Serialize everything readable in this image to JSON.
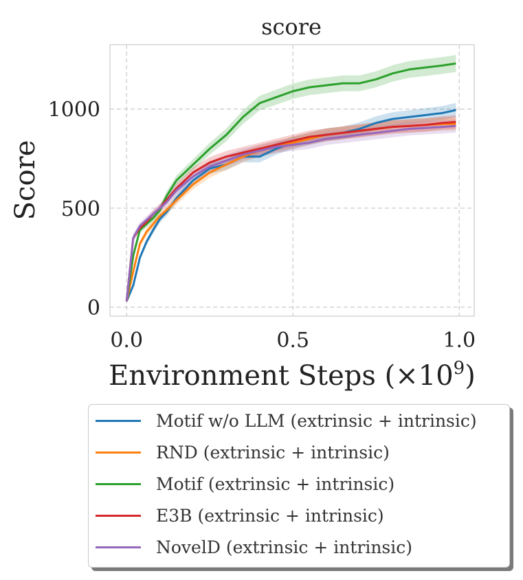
{
  "chart_data": {
    "type": "line",
    "title": "score",
    "xlabel": "Environment Steps (×10",
    "xlabel_exponent": "9",
    "xlabel_close": ")",
    "ylabel": "Score",
    "xlim": [
      -0.05,
      1.045
    ],
    "ylim": [
      -45,
      1325
    ],
    "xticks": [
      {
        "value": 0.0,
        "label": "0.0"
      },
      {
        "value": 0.5,
        "label": "0.5"
      },
      {
        "value": 1.0,
        "label": "1.0"
      }
    ],
    "yticks": [
      {
        "value": 0,
        "label": "0"
      },
      {
        "value": 500,
        "label": "500"
      },
      {
        "value": 1000,
        "label": "1000"
      }
    ],
    "grid": true,
    "legend_position": "below",
    "x": [
      0.0,
      0.02,
      0.04,
      0.06,
      0.08,
      0.1,
      0.12,
      0.15,
      0.2,
      0.25,
      0.3,
      0.35,
      0.4,
      0.45,
      0.5,
      0.55,
      0.6,
      0.65,
      0.7,
      0.75,
      0.8,
      0.85,
      0.9,
      0.95,
      0.99
    ],
    "series": [
      {
        "name": "Motif w/o LLM (extrinsic + intrinsic)",
        "color": "#1f77b4",
        "values": [
          30,
          110,
          250,
          330,
          390,
          445,
          480,
          550,
          640,
          700,
          720,
          760,
          760,
          800,
          830,
          850,
          870,
          880,
          900,
          930,
          950,
          960,
          970,
          980,
          995
        ]
      },
      {
        "name": "RND (extrinsic + intrinsic)",
        "color": "#ff7f0e",
        "values": [
          30,
          180,
          320,
          380,
          420,
          460,
          490,
          540,
          620,
          680,
          720,
          760,
          790,
          810,
          830,
          850,
          870,
          880,
          890,
          900,
          910,
          915,
          920,
          925,
          925
        ]
      },
      {
        "name": "Motif (extrinsic + intrinsic)",
        "color": "#2ca02c",
        "values": [
          30,
          260,
          390,
          420,
          450,
          490,
          560,
          640,
          720,
          800,
          870,
          960,
          1030,
          1060,
          1090,
          1110,
          1120,
          1130,
          1130,
          1150,
          1180,
          1200,
          1210,
          1220,
          1230
        ]
      },
      {
        "name": "E3B (extrinsic + intrinsic)",
        "color": "#d62728",
        "values": [
          30,
          350,
          400,
          430,
          470,
          500,
          540,
          600,
          680,
          730,
          760,
          780,
          800,
          820,
          840,
          860,
          870,
          880,
          890,
          900,
          910,
          915,
          920,
          930,
          935
        ]
      },
      {
        "name": "NovelD (extrinsic + intrinsic)",
        "color": "#9467bd",
        "values": [
          30,
          350,
          410,
          440,
          470,
          500,
          530,
          590,
          660,
          710,
          740,
          770,
          790,
          810,
          820,
          830,
          850,
          860,
          870,
          880,
          890,
          900,
          905,
          910,
          915
        ]
      }
    ]
  }
}
